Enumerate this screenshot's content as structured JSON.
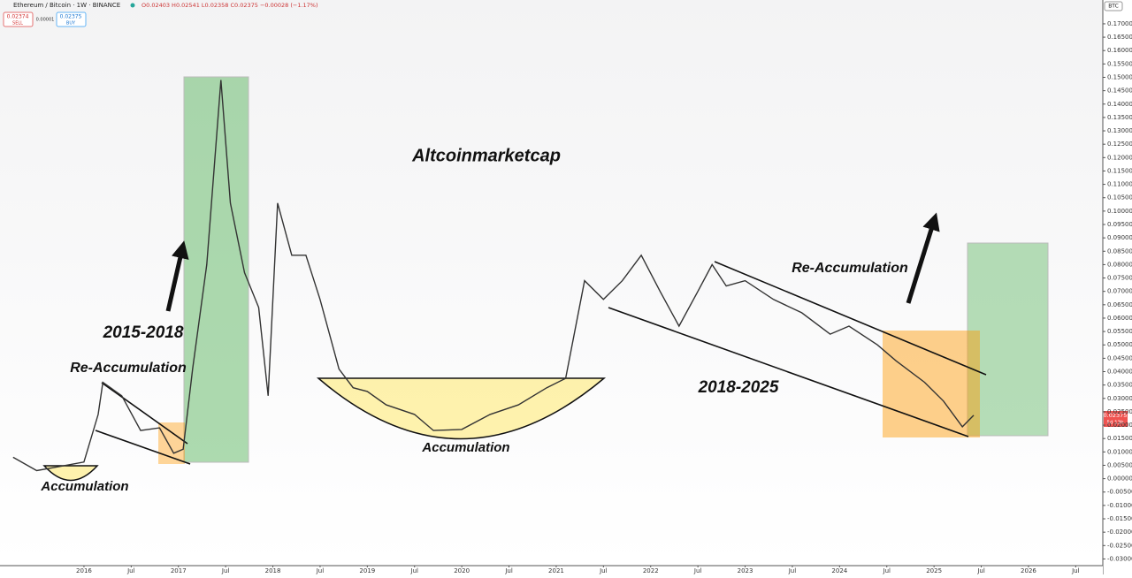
{
  "header": {
    "symbol": "Ethereum / Bitcoin · 1W · BINANCE",
    "ohlc": "O0.02403 H0.02541 L0.02358 C0.02375 −0.00028 (−1.17%)",
    "sell_price": "0.02374",
    "sell": "SELL",
    "spread": "0.00001",
    "buy_price": "0.02375",
    "buy": "BUY",
    "currency": "BTC",
    "last_price": "0.02375",
    "countdown": "5d 13h"
  },
  "chart_data": {
    "type": "line",
    "color": "#333333",
    "x": [
      2015.25,
      2015.5,
      2015.75,
      2016.0,
      2016.15,
      2016.2,
      2016.4,
      2016.6,
      2016.8,
      2016.95,
      2017.05,
      2017.15,
      2017.3,
      2017.45,
      2017.55,
      2017.7,
      2017.85,
      2017.95,
      2018.05,
      2018.2,
      2018.35,
      2018.5,
      2018.7,
      2018.85,
      2019.0,
      2019.2,
      2019.5,
      2019.7,
      2020.0,
      2020.3,
      2020.6,
      2020.9,
      2021.1,
      2021.3,
      2021.5,
      2021.7,
      2021.9,
      2022.1,
      2022.3,
      2022.5,
      2022.65,
      2022.8,
      2023.0,
      2023.3,
      2023.6,
      2023.9,
      2024.1,
      2024.4,
      2024.6,
      2024.9,
      2025.1,
      2025.3,
      2025.42
    ],
    "values": [
      0.008,
      0.003,
      0.0046,
      0.0062,
      0.024,
      0.036,
      0.031,
      0.018,
      0.019,
      0.0095,
      0.011,
      0.041,
      0.08,
      0.149,
      0.103,
      0.077,
      0.064,
      0.031,
      0.103,
      0.0835,
      0.0835,
      0.067,
      0.041,
      0.034,
      0.0326,
      0.0276,
      0.024,
      0.018,
      0.0184,
      0.024,
      0.0276,
      0.034,
      0.0375,
      0.074,
      0.067,
      0.074,
      0.0835,
      0.07,
      0.057,
      0.07,
      0.08,
      0.072,
      0.074,
      0.067,
      0.062,
      0.054,
      0.057,
      0.05,
      0.044,
      0.036,
      0.029,
      0.0194,
      0.0237
    ],
    "xlim": [
      2015.111,
      2026.787
    ],
    "ylim": [
      -0.0325,
      0.1789
    ],
    "xticks": [
      {
        "value": 2016,
        "label": "2016"
      },
      {
        "value": 2016.5,
        "label": "Jul"
      },
      {
        "value": 2017,
        "label": "2017"
      },
      {
        "value": 2017.5,
        "label": "Jul"
      },
      {
        "value": 2018,
        "label": "2018"
      },
      {
        "value": 2018.5,
        "label": "Jul"
      },
      {
        "value": 2019,
        "label": "2019"
      },
      {
        "value": 2019.5,
        "label": "Jul"
      },
      {
        "value": 2020,
        "label": "2020"
      },
      {
        "value": 2020.5,
        "label": "Jul"
      },
      {
        "value": 2021,
        "label": "2021"
      },
      {
        "value": 2021.5,
        "label": "Jul"
      },
      {
        "value": 2022,
        "label": "2022"
      },
      {
        "value": 2022.5,
        "label": "Jul"
      },
      {
        "value": 2023,
        "label": "2023"
      },
      {
        "value": 2023.5,
        "label": "Jul"
      },
      {
        "value": 2024,
        "label": "2024"
      },
      {
        "value": 2024.5,
        "label": "Jul"
      },
      {
        "value": 2025,
        "label": "2025"
      },
      {
        "value": 2025.5,
        "label": "Jul"
      },
      {
        "value": 2026,
        "label": "2026"
      },
      {
        "value": 2026.5,
        "label": "Jul"
      }
    ],
    "yticks": [
      {
        "value": 0.17,
        "label": "0.17000"
      },
      {
        "value": 0.165,
        "label": "0.16500"
      },
      {
        "value": 0.16,
        "label": "0.16000"
      },
      {
        "value": 0.155,
        "label": "0.15500"
      },
      {
        "value": 0.15,
        "label": "0.15000"
      },
      {
        "value": 0.145,
        "label": "0.14500"
      },
      {
        "value": 0.14,
        "label": "0.14000"
      },
      {
        "value": 0.135,
        "label": "0.13500"
      },
      {
        "value": 0.13,
        "label": "0.13000"
      },
      {
        "value": 0.125,
        "label": "0.12500"
      },
      {
        "value": 0.12,
        "label": "0.12000"
      },
      {
        "value": 0.115,
        "label": "0.11500"
      },
      {
        "value": 0.11,
        "label": "0.11000"
      },
      {
        "value": 0.105,
        "label": "0.10500"
      },
      {
        "value": 0.1,
        "label": "0.10000"
      },
      {
        "value": 0.095,
        "label": "0.09500"
      },
      {
        "value": 0.09,
        "label": "0.09000"
      },
      {
        "value": 0.085,
        "label": "0.08500"
      },
      {
        "value": 0.08,
        "label": "0.08000"
      },
      {
        "value": 0.075,
        "label": "0.07500"
      },
      {
        "value": 0.07,
        "label": "0.07000"
      },
      {
        "value": 0.065,
        "label": "0.06500"
      },
      {
        "value": 0.06,
        "label": "0.06000"
      },
      {
        "value": 0.055,
        "label": "0.05500"
      },
      {
        "value": 0.05,
        "label": "0.05000"
      },
      {
        "value": 0.045,
        "label": "0.04500"
      },
      {
        "value": 0.04,
        "label": "0.04000"
      },
      {
        "value": 0.035,
        "label": "0.03500"
      },
      {
        "value": 0.03,
        "label": "0.03000"
      },
      {
        "value": 0.025,
        "label": "0.02500"
      },
      {
        "value": 0.02,
        "label": "0.02000"
      },
      {
        "value": 0.015,
        "label": "0.01500"
      },
      {
        "value": 0.01,
        "label": "0.01000"
      },
      {
        "value": 0.005,
        "label": "0.00500"
      },
      {
        "value": 0,
        "label": "0.00000"
      },
      {
        "value": -0.005,
        "label": "-0.00500"
      },
      {
        "value": -0.01,
        "label": "-0.01000"
      },
      {
        "value": -0.015,
        "label": "-0.01500"
      },
      {
        "value": -0.02,
        "label": "-0.02000"
      },
      {
        "value": -0.025,
        "label": "-0.02500"
      },
      {
        "value": -0.03,
        "label": "-0.03000"
      }
    ],
    "grid": false,
    "annotations": [
      "Altcoinmarketcap",
      "2015-2018",
      "Re-Accumulation",
      "Accumulation",
      "Accumulation",
      "2018-2025",
      "Re-Accumulation"
    ]
  }
}
